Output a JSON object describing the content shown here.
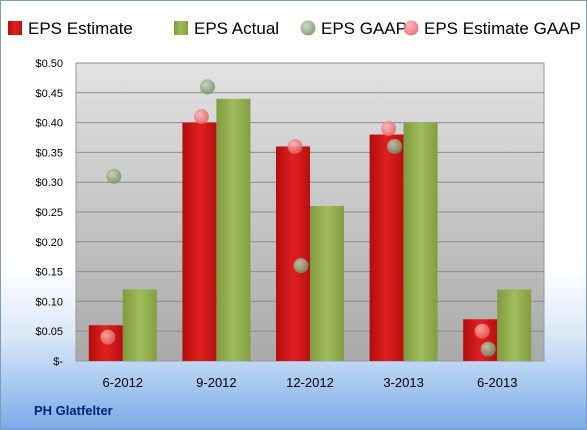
{
  "company": "PH Glatfelter",
  "chart_data": {
    "type": "bar",
    "categories": [
      "6-2012",
      "9-2012",
      "12-2012",
      "3-2013",
      "6-2013"
    ],
    "series": [
      {
        "name": "EPS Estimate",
        "kind": "bar",
        "color": "#cc1414",
        "values": [
          0.06,
          0.4,
          0.36,
          0.38,
          0.07
        ]
      },
      {
        "name": "EPS Actual",
        "kind": "bar",
        "color": "#8faa4a",
        "values": [
          0.12,
          0.44,
          0.26,
          0.4,
          0.12
        ]
      },
      {
        "name": "EPS GAAP",
        "kind": "scatter",
        "color": "#7d9a70",
        "values": [
          0.31,
          0.46,
          0.16,
          0.36,
          0.02
        ]
      },
      {
        "name": "EPS Estimate GAAP",
        "kind": "scatter",
        "color": "#ee7070",
        "values": [
          0.04,
          0.41,
          0.36,
          0.39,
          0.05
        ]
      }
    ],
    "ylim": [
      0,
      0.5
    ],
    "y_ticks": [
      "$-",
      "$0.05",
      "$0.10",
      "$0.15",
      "$0.20",
      "$0.25",
      "$0.30",
      "$0.35",
      "$0.40",
      "$0.45",
      "$0.50"
    ],
    "grid": true,
    "legend": "top"
  }
}
